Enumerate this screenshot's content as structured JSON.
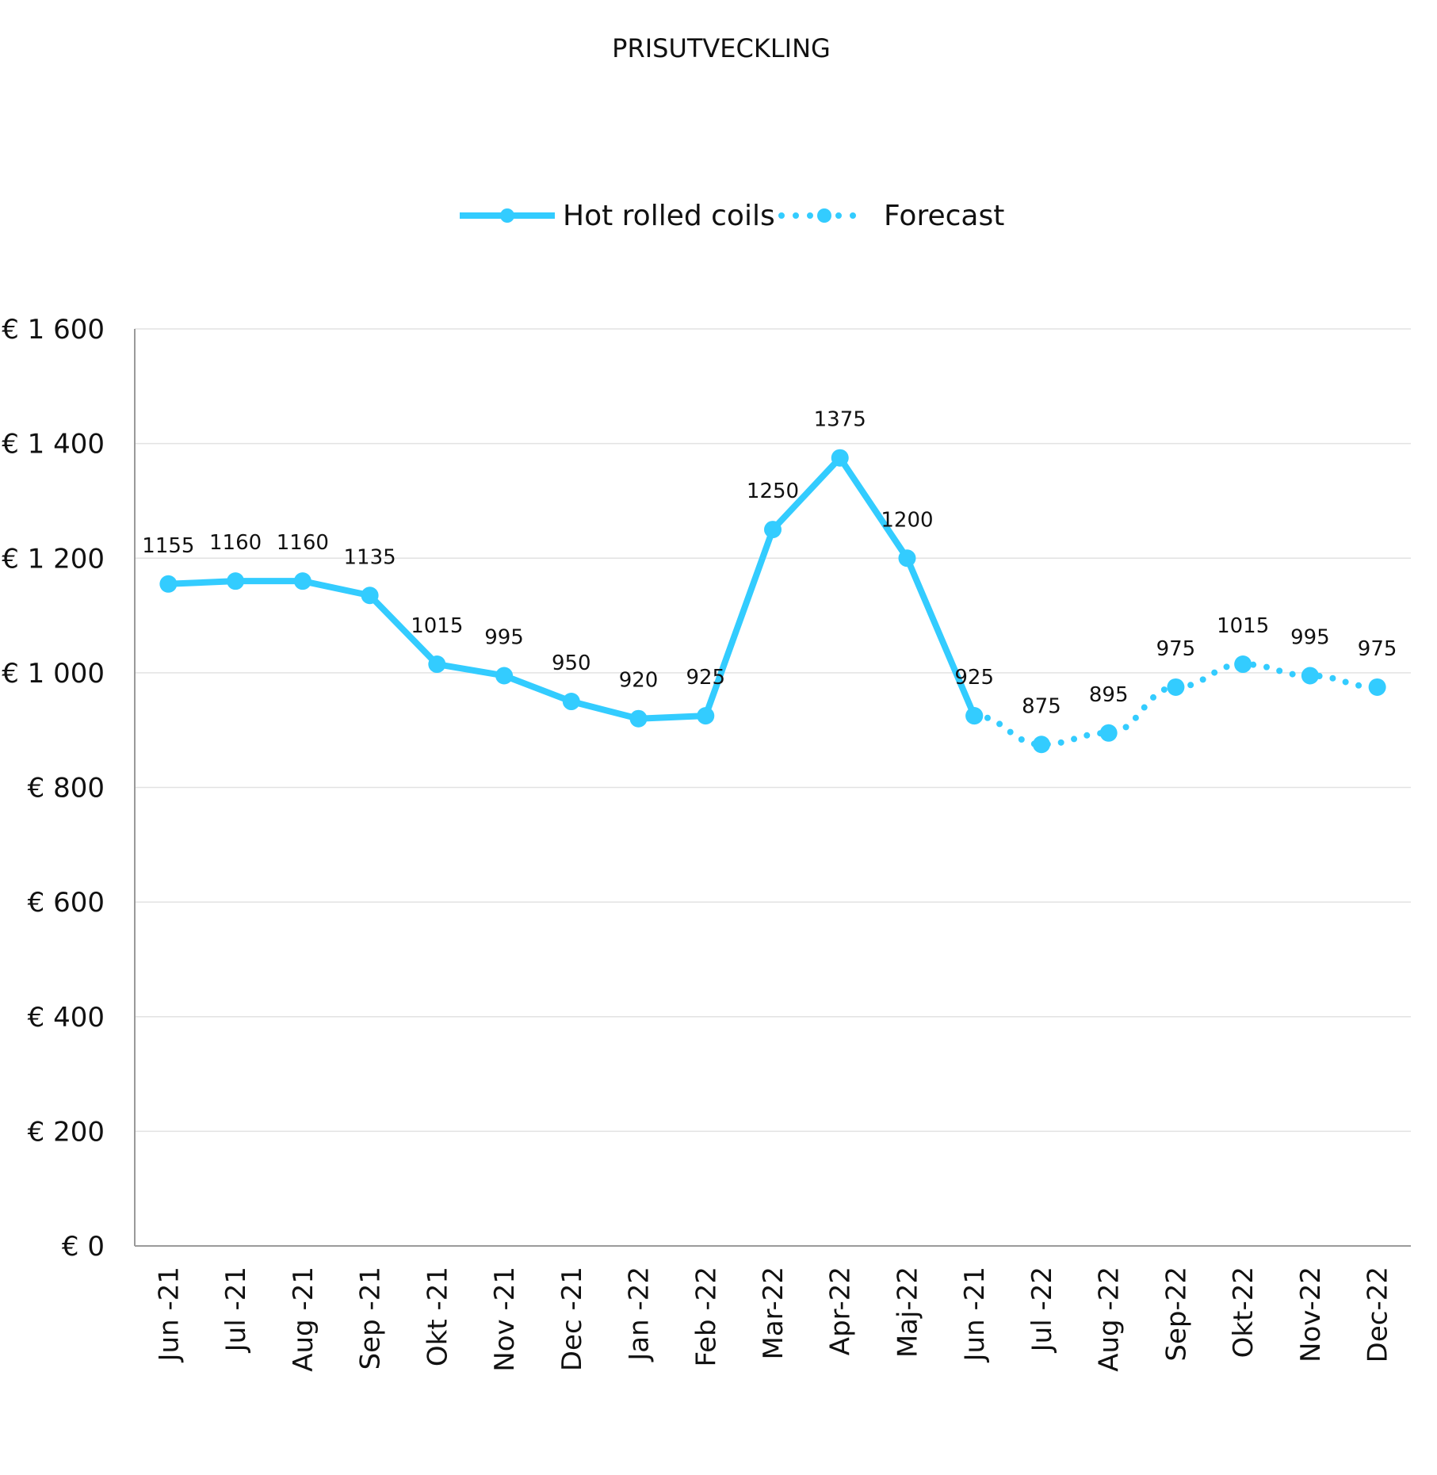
{
  "chart_data": {
    "type": "line",
    "title": "PRISUTVECKLING",
    "categories": [
      "Jun -21",
      "Jul -21",
      "Aug -21",
      "Sep -21",
      "Okt -21",
      "Nov -21",
      "Dec -21",
      "Jan -22",
      "Feb -22",
      "Mar-22",
      "Apr-22",
      "Maj-22",
      "Jun -21",
      "Jul -22",
      "Aug -22",
      "Sep-22",
      "Okt-22",
      "Nov-22",
      "Dec-22"
    ],
    "series": [
      {
        "name": "Hot rolled coils",
        "style": "solid",
        "values": [
          1155,
          1160,
          1160,
          1135,
          1015,
          995,
          950,
          920,
          925,
          1250,
          1375,
          1200,
          925,
          null,
          null,
          null,
          null,
          null,
          null
        ]
      },
      {
        "name": "Forecast",
        "style": "dotted",
        "values": [
          null,
          null,
          null,
          null,
          null,
          null,
          null,
          null,
          null,
          null,
          null,
          null,
          925,
          875,
          895,
          975,
          1015,
          995,
          975
        ]
      }
    ],
    "data_labels": [
      "1155",
      "1160",
      "1160",
      "1135",
      "1015",
      "995",
      "950",
      "920",
      "925",
      "1250",
      "1375",
      "1200",
      "925",
      "875",
      "895",
      "975",
      "1015",
      "995",
      "975"
    ],
    "y_ticks": [
      "€ 0",
      "€ 200",
      "€ 400",
      "€ 600",
      "€ 800",
      "€ 1 000",
      "€ 1 200",
      "€ 1 400",
      "€ 1 600"
    ],
    "y_tick_values": [
      0,
      200,
      400,
      600,
      800,
      1000,
      1200,
      1400,
      1600
    ],
    "ylim": [
      0,
      1600
    ],
    "grid": true,
    "legend_position": "top-center",
    "color": "#33ccff"
  }
}
